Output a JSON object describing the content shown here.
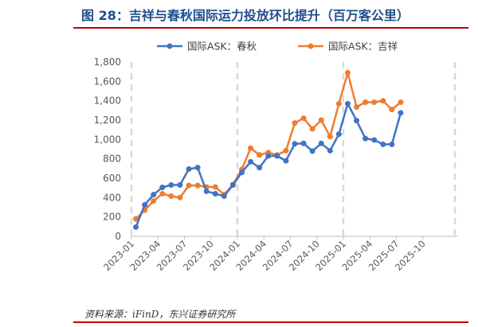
{
  "title": "图 28：吉祥与春秋国际运力投放环比提升（百万客公里）",
  "source": "资料来源：iFinD，东兴证券研究所",
  "chart_data": {
    "type": "line",
    "title": "",
    "xlabel": "",
    "ylabel": "",
    "ylim": [
      0,
      1800
    ],
    "yticks": [
      "0",
      "200",
      "400",
      "600",
      "800",
      "1,000",
      "1,200",
      "1,400",
      "1,600",
      "1,800"
    ],
    "xticks": [
      "2023-01",
      "2023-04",
      "2023-07",
      "2023-10",
      "2024-01",
      "2024-04",
      "2024-07",
      "2024-10",
      "2025-01",
      "2025-04",
      "2025-07",
      "2025-10"
    ],
    "legend_position": "top",
    "grid": false,
    "x": [
      "2023-01",
      "2023-02",
      "2023-03",
      "2023-04",
      "2023-05",
      "2023-06",
      "2023-07",
      "2023-08",
      "2023-09",
      "2023-10",
      "2023-11",
      "2023-12",
      "2024-01",
      "2024-02",
      "2024-03",
      "2024-04",
      "2024-05",
      "2024-06",
      "2024-07",
      "2024-08",
      "2024-09",
      "2024-10",
      "2024-11",
      "2024-12",
      "2025-01",
      "2025-02",
      "2025-03",
      "2025-04",
      "2025-05",
      "2025-06",
      "2025-07"
    ],
    "series": [
      {
        "name": "国际ASK：春秋",
        "color": "#4472c4",
        "values": [
          95,
          325,
          430,
          505,
          530,
          530,
          695,
          710,
          465,
          440,
          415,
          530,
          660,
          770,
          710,
          830,
          830,
          780,
          955,
          960,
          880,
          960,
          885,
          1055,
          1370,
          1195,
          1010,
          995,
          950,
          950,
          1275
        ]
      },
      {
        "name": "国际ASK：吉祥",
        "color": "#ed7d31",
        "values": [
          180,
          270,
          365,
          440,
          415,
          400,
          525,
          525,
          510,
          510,
          430,
          535,
          690,
          910,
          840,
          865,
          840,
          885,
          1170,
          1220,
          1110,
          1200,
          1030,
          1370,
          1690,
          1335,
          1385,
          1385,
          1400,
          1310,
          1385
        ]
      }
    ],
    "vlines_at": [
      "2023-01",
      "2024-01",
      "2025-01"
    ]
  }
}
